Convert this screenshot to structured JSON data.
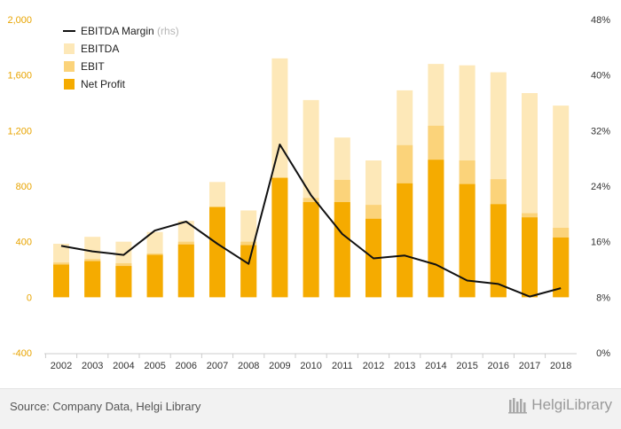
{
  "chart_data": {
    "type": "bar",
    "subtype": "overlapping bars with line on secondary axis",
    "categories": [
      "2002",
      "2003",
      "2004",
      "2005",
      "2006",
      "2007",
      "2008",
      "2009",
      "2010",
      "2011",
      "2012",
      "2013",
      "2014",
      "2015",
      "2016",
      "2017",
      "2018"
    ],
    "series": [
      {
        "name": "EBITDA",
        "axis": "left",
        "kind": "bar",
        "values": [
          385,
          435,
          400,
          470,
          550,
          830,
          625,
          1720,
          1420,
          1150,
          985,
          1490,
          1680,
          1670,
          1620,
          1470,
          1380
        ]
      },
      {
        "name": "EBIT",
        "axis": "left",
        "kind": "bar",
        "values": [
          250,
          275,
          245,
          315,
          400,
          640,
          400,
          860,
          715,
          845,
          665,
          1095,
          1235,
          985,
          850,
          605,
          500
        ]
      },
      {
        "name": "Net Profit",
        "axis": "left",
        "kind": "bar",
        "values": [
          235,
          260,
          225,
          305,
          380,
          650,
          375,
          860,
          685,
          685,
          565,
          820,
          990,
          815,
          670,
          575,
          430
        ]
      },
      {
        "name": "EBITDA Margin",
        "note": "(rhs)",
        "axis": "right",
        "kind": "line",
        "values": [
          15.4,
          14.6,
          14.1,
          17.6,
          18.9,
          15.7,
          12.8,
          30.0,
          22.7,
          17.1,
          13.6,
          14.0,
          12.7,
          10.4,
          9.9,
          8.1,
          9.3
        ]
      }
    ],
    "yleft": {
      "ticks": [
        "2,000",
        "1,600",
        "1,200",
        "800",
        "400",
        "0",
        "-400"
      ],
      "range": [
        -400,
        2000
      ]
    },
    "yright": {
      "ticks": [
        "48%",
        "40%",
        "32%",
        "24%",
        "16%",
        "8%",
        "0%"
      ],
      "range": [
        0,
        48
      ],
      "unit": "%"
    },
    "legend": {
      "position": "top-left"
    },
    "grid": false
  },
  "colors": {
    "ebitda": "#fde8b8",
    "ebit": "#fbd37a",
    "net_profit": "#f5ab00",
    "line": "#111111",
    "left_axis_text": "#e8a400"
  },
  "footer": {
    "source": "Source: Company Data, Helgi Library",
    "brand": "HelgiLibrary",
    "brand_icon": "library-logo-icon"
  }
}
